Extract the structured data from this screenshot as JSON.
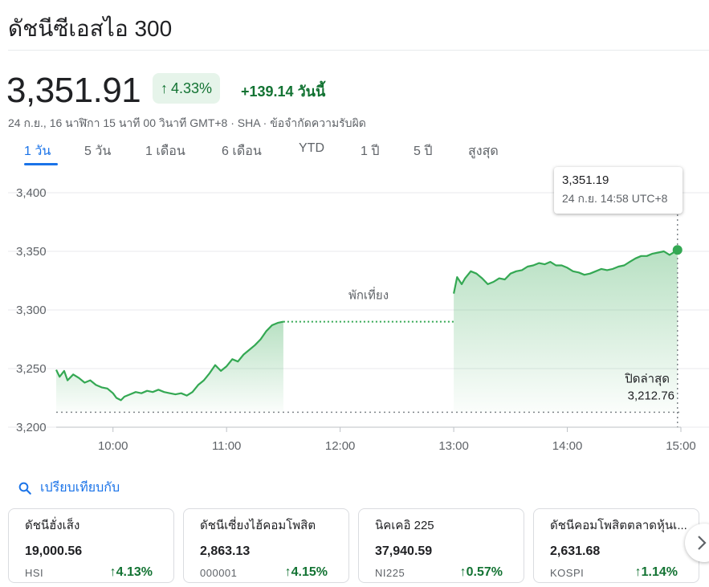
{
  "title": "ดัชนีซีเอสไอ 300",
  "quote": {
    "price": "3,351.91",
    "change_pct": "4.33%",
    "change_abs": "+139.14 วันนี้",
    "meta": "24 ก.ย., 16 นาฬิกา 15 นาที 00 วินาที GMT+8 · SHA · ข้อจำกัดความรับผิด"
  },
  "tabs": [
    {
      "label": "1 วัน",
      "active": true
    },
    {
      "label": "5 วัน"
    },
    {
      "label": "1 เดือน"
    },
    {
      "label": "6 เดือน"
    },
    {
      "label": "YTD"
    },
    {
      "label": "1 ปี"
    },
    {
      "label": "5 ปี"
    },
    {
      "label": "สูงสุด"
    }
  ],
  "tooltip": {
    "value": "3,351.19",
    "time": "24 ก.ย. 14:58 UTC+8"
  },
  "chart_data": {
    "type": "line",
    "y_ticks": [
      "3,400",
      "3,350",
      "3,300",
      "3,250",
      "3,200"
    ],
    "y_tick_values": [
      3400,
      3350,
      3300,
      3250,
      3200
    ],
    "x_ticks": [
      "10:00",
      "11:00",
      "12:00",
      "13:00",
      "14:00",
      "15:00"
    ],
    "x_tick_values": [
      10,
      11,
      12,
      13,
      14,
      15
    ],
    "ylim": [
      3200,
      3400
    ],
    "xlim": [
      9.5,
      15
    ],
    "previous_close": 3212.76,
    "previous_close_label": "ปิดล่าสุด",
    "previous_close_text": "3,212.76",
    "lunch_break_label": "พักเที่ยง",
    "lunch_break": [
      11.5,
      13.0
    ],
    "colors": {
      "line": "#34a853",
      "grid": "#e8eaed",
      "axis_text": "#5f6368"
    },
    "morning_session": [
      [
        9.5,
        3249
      ],
      [
        9.53,
        3243
      ],
      [
        9.57,
        3248
      ],
      [
        9.6,
        3240
      ],
      [
        9.65,
        3245
      ],
      [
        9.7,
        3242
      ],
      [
        9.75,
        3238
      ],
      [
        9.8,
        3240
      ],
      [
        9.85,
        3236
      ],
      [
        9.9,
        3234
      ],
      [
        9.95,
        3233
      ],
      [
        10.0,
        3229
      ],
      [
        10.03,
        3225
      ],
      [
        10.07,
        3223
      ],
      [
        10.1,
        3226
      ],
      [
        10.15,
        3228
      ],
      [
        10.2,
        3230
      ],
      [
        10.25,
        3229
      ],
      [
        10.3,
        3231
      ],
      [
        10.35,
        3230
      ],
      [
        10.4,
        3232
      ],
      [
        10.45,
        3230
      ],
      [
        10.5,
        3229
      ],
      [
        10.55,
        3228
      ],
      [
        10.6,
        3229
      ],
      [
        10.65,
        3227
      ],
      [
        10.7,
        3230
      ],
      [
        10.75,
        3236
      ],
      [
        10.8,
        3240
      ],
      [
        10.85,
        3246
      ],
      [
        10.9,
        3253
      ],
      [
        10.95,
        3248
      ],
      [
        11.0,
        3252
      ],
      [
        11.05,
        3258
      ],
      [
        11.1,
        3256
      ],
      [
        11.15,
        3262
      ],
      [
        11.2,
        3266
      ],
      [
        11.25,
        3270
      ],
      [
        11.3,
        3275
      ],
      [
        11.35,
        3282
      ],
      [
        11.4,
        3287
      ],
      [
        11.45,
        3289
      ],
      [
        11.5,
        3290
      ]
    ],
    "afternoon_session": [
      [
        13.0,
        3314
      ],
      [
        13.03,
        3328
      ],
      [
        13.07,
        3322
      ],
      [
        13.1,
        3327
      ],
      [
        13.15,
        3333
      ],
      [
        13.2,
        3331
      ],
      [
        13.25,
        3327
      ],
      [
        13.3,
        3322
      ],
      [
        13.35,
        3324
      ],
      [
        13.4,
        3327
      ],
      [
        13.45,
        3326
      ],
      [
        13.5,
        3331
      ],
      [
        13.55,
        3333
      ],
      [
        13.6,
        3334
      ],
      [
        13.65,
        3337
      ],
      [
        13.7,
        3338
      ],
      [
        13.75,
        3340
      ],
      [
        13.8,
        3339
      ],
      [
        13.85,
        3341
      ],
      [
        13.9,
        3338
      ],
      [
        13.95,
        3338
      ],
      [
        14.0,
        3336
      ],
      [
        14.05,
        3333
      ],
      [
        14.1,
        3332
      ],
      [
        14.15,
        3330
      ],
      [
        14.2,
        3331
      ],
      [
        14.25,
        3333
      ],
      [
        14.3,
        3335
      ],
      [
        14.35,
        3334
      ],
      [
        14.4,
        3335
      ],
      [
        14.45,
        3337
      ],
      [
        14.5,
        3338
      ],
      [
        14.55,
        3341
      ],
      [
        14.6,
        3344
      ],
      [
        14.65,
        3346
      ],
      [
        14.7,
        3346
      ],
      [
        14.75,
        3348
      ],
      [
        14.8,
        3349
      ],
      [
        14.85,
        3350
      ],
      [
        14.9,
        3347
      ],
      [
        14.97,
        3351.19
      ]
    ]
  },
  "compare": {
    "label": "เปรียบเทียบกับ"
  },
  "related": [
    {
      "name": "ดัชนีฮั่งเส็ง",
      "price": "19,000.56",
      "ticker": "HSI",
      "change": "4.13%"
    },
    {
      "name": "ดัชนีเซี่ยงไฮ้คอมโพสิต",
      "price": "2,863.13",
      "ticker": "000001",
      "change": "4.15%"
    },
    {
      "name": "นิคเคอิ 225",
      "price": "37,940.59",
      "ticker": "NI225",
      "change": "0.57%"
    },
    {
      "name": "ดัชนีคอมโพสิตตลาดหุ้นเ...",
      "price": "2,631.68",
      "ticker": "KOSPI",
      "change": "1.14%"
    }
  ],
  "icons": {
    "search": "search-icon",
    "next": "chevron-right-icon",
    "arrow": "arrow-up-icon"
  }
}
